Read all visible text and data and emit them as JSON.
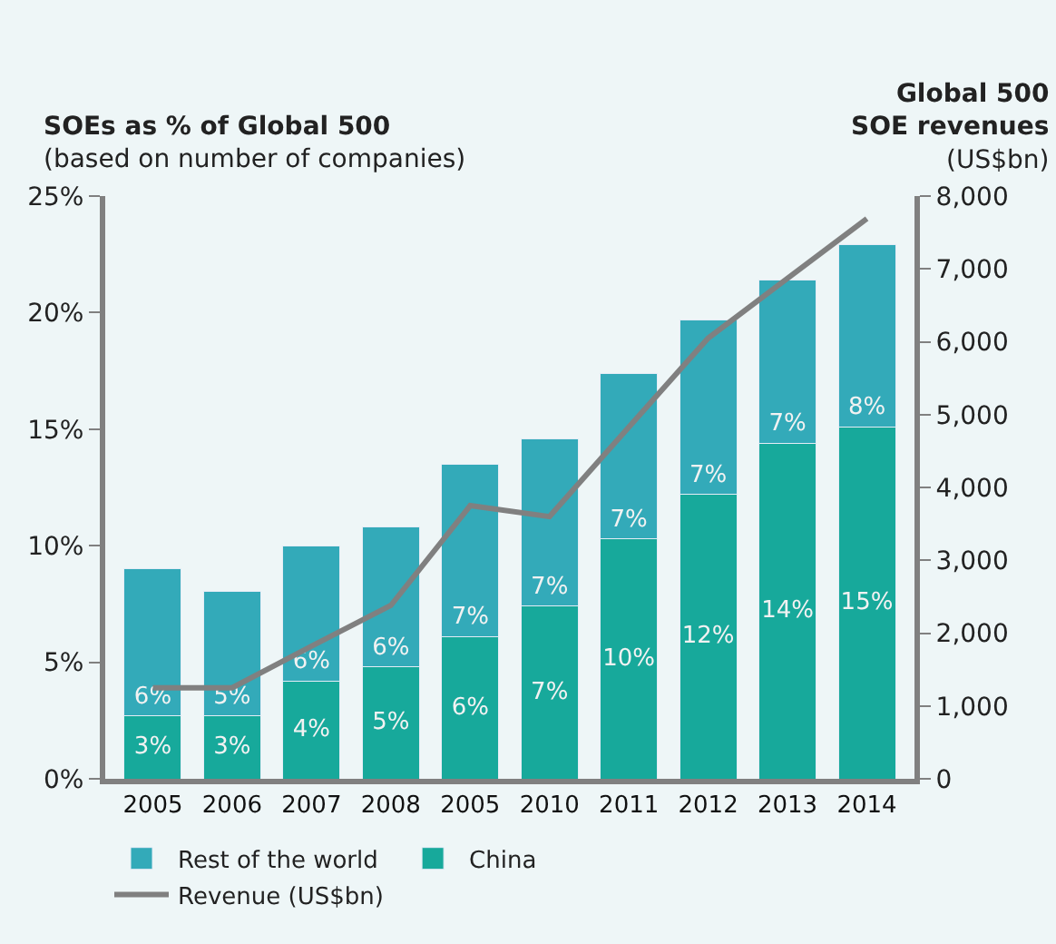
{
  "chart_data": {
    "type": "bar",
    "stacked": true,
    "title": "SOEs as % of Global 500",
    "subtitle": "(based on number of companies)",
    "y2label": "Global 500\nSOE revenues\n(US$bn)",
    "categories": [
      "2005",
      "2006",
      "2007",
      "2008",
      "2005",
      "2010",
      "2011",
      "2012",
      "2013",
      "2014"
    ],
    "series": [
      {
        "name": "China",
        "color": "#17a99b",
        "values": [
          2.7,
          2.7,
          4.2,
          4.8,
          6.1,
          7.4,
          10.3,
          12.2,
          14.4,
          15.1
        ],
        "value_labels": [
          "3%",
          "3%",
          "4%",
          "5%",
          "6%",
          "7%",
          "10%",
          "12%",
          "14%",
          "15%"
        ]
      },
      {
        "name": "Rest of the world",
        "color": "#33aab9",
        "values": [
          6.3,
          5.35,
          5.8,
          6.0,
          7.4,
          7.2,
          7.1,
          7.5,
          7.0,
          7.8
        ],
        "value_labels": [
          "6%",
          "5%",
          "6%",
          "6%",
          "7%",
          "7%",
          "7%",
          "7%",
          "7%",
          "8%"
        ]
      },
      {
        "name": "Revenue (US$bn)",
        "type": "line",
        "axis": "y2",
        "color": "#808080",
        "values": [
          1250,
          1250,
          1820,
          2380,
          3750,
          3600,
          4830,
          6050,
          6870,
          7690
        ]
      }
    ],
    "ylim": [
      0,
      25
    ],
    "yticks": [
      {
        "value": 0,
        "label": "0%"
      },
      {
        "value": 5,
        "label": "5%"
      },
      {
        "value": 10,
        "label": "10%"
      },
      {
        "value": 15,
        "label": "15%"
      },
      {
        "value": 20,
        "label": "20%"
      },
      {
        "value": 25,
        "label": "25%"
      }
    ],
    "y2lim": [
      0,
      8000
    ],
    "y2ticks": [
      0,
      {
        "value": 1000,
        "label": "1,000"
      },
      {
        "value": 2000,
        "label": "2,000"
      },
      {
        "value": 3000,
        "label": "3,000"
      },
      {
        "value": 4000,
        "label": "4,000"
      },
      {
        "value": 5000,
        "label": "5,000"
      },
      {
        "value": 6000,
        "label": "6,000"
      },
      {
        "value": 7000,
        "label": "7,000"
      },
      {
        "value": 8000,
        "label": "8,000"
      }
    ],
    "grid": false,
    "legend": "bottom",
    "marker": "none",
    "line_style": "solid"
  }
}
